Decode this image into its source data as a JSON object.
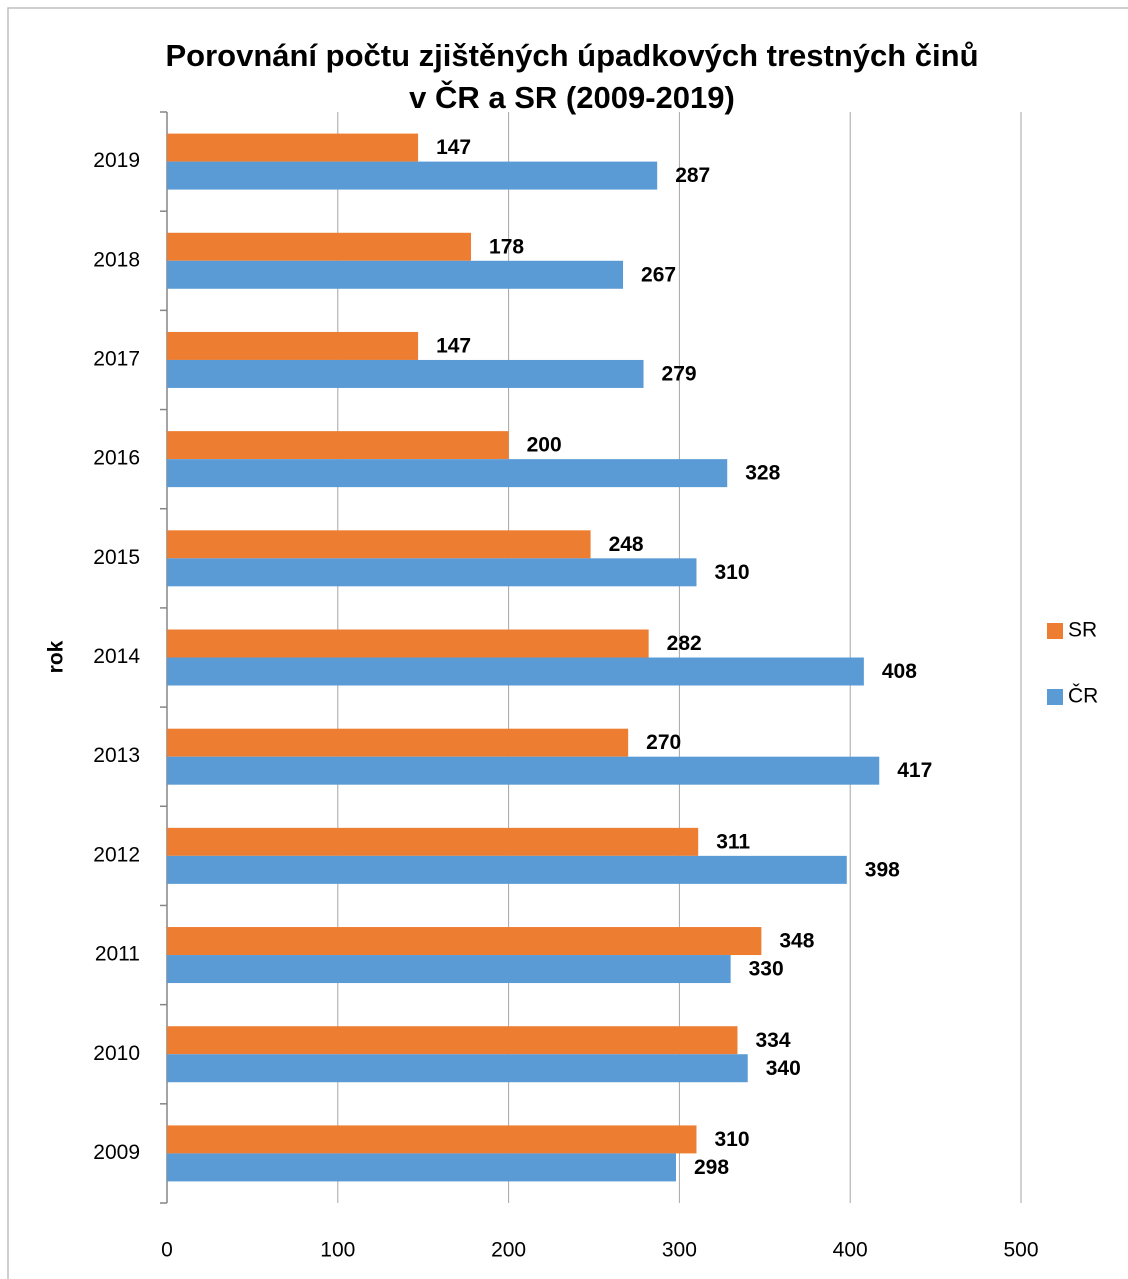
{
  "chart_data": {
    "type": "bar",
    "orientation": "horizontal",
    "title": [
      "Porovnání počtu zjištěných úpadkových trestných činů",
      "v ČR a SR (2009-2019)"
    ],
    "y_label": "rok",
    "categories": [
      "2009",
      "2010",
      "2011",
      "2012",
      "2013",
      "2014",
      "2015",
      "2016",
      "2017",
      "2018",
      "2019"
    ],
    "series": [
      {
        "name": "SR",
        "color": "#ed7d31",
        "values": [
          310,
          334,
          348,
          311,
          270,
          282,
          248,
          200,
          147,
          178,
          147
        ]
      },
      {
        "name": "ČR",
        "color": "#5b9bd5",
        "values": [
          298,
          340,
          330,
          398,
          417,
          408,
          310,
          328,
          279,
          267,
          287
        ]
      }
    ],
    "xlim": [
      0,
      500
    ],
    "xticks": [
      0,
      100,
      200,
      300,
      400,
      500
    ],
    "grid": true,
    "legend": "right"
  }
}
